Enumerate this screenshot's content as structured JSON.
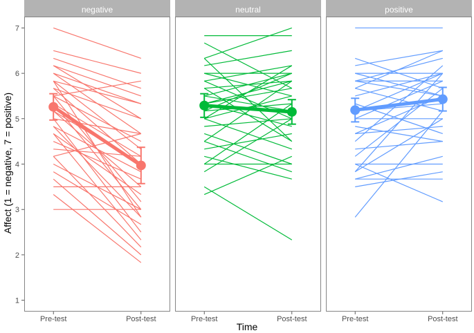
{
  "chart_data": {
    "type": "line",
    "xlabel": "Time",
    "ylabel": "Affect (1 = negative, 7 = positive)",
    "x_categories": [
      "Pre-test",
      "Post-test"
    ],
    "ylim": [
      0.75,
      7.25
    ],
    "y_ticks": [
      "1",
      "2",
      "3",
      "4",
      "5",
      "6",
      "7"
    ],
    "grid": false,
    "panels": [
      {
        "name": "negative",
        "color": "#F8766D",
        "mean": {
          "pre": 5.26,
          "post": 3.97,
          "pre_ci": [
            4.97,
            5.55
          ],
          "post_ci": [
            3.57,
            4.37
          ]
        },
        "individuals": [
          [
            7.0,
            6.33
          ],
          [
            6.5,
            6.0
          ],
          [
            6.33,
            5.67
          ],
          [
            6.17,
            5.5
          ],
          [
            6.17,
            5.0
          ],
          [
            6.0,
            5.33
          ],
          [
            6.0,
            4.67
          ],
          [
            5.83,
            5.33
          ],
          [
            5.83,
            4.33
          ],
          [
            5.67,
            5.0
          ],
          [
            5.67,
            4.0
          ],
          [
            5.5,
            5.83
          ],
          [
            5.5,
            4.5
          ],
          [
            5.33,
            4.17
          ],
          [
            5.33,
            3.0
          ],
          [
            5.17,
            4.0
          ],
          [
            5.17,
            3.5
          ],
          [
            5.0,
            4.67
          ],
          [
            5.0,
            2.5
          ],
          [
            4.83,
            3.83
          ],
          [
            4.83,
            2.83
          ],
          [
            4.67,
            3.33
          ],
          [
            4.67,
            2.33
          ],
          [
            4.5,
            3.67
          ],
          [
            4.33,
            4.17
          ],
          [
            4.17,
            2.17
          ],
          [
            4.0,
            3.0
          ],
          [
            3.83,
            2.67
          ],
          [
            3.67,
            2.0
          ],
          [
            3.5,
            3.5
          ],
          [
            3.33,
            1.83
          ],
          [
            3.0,
            3.0
          ],
          [
            4.17,
            4.67
          ],
          [
            5.5,
            3.17
          ],
          [
            5.83,
            2.83
          ]
        ]
      },
      {
        "name": "neutral",
        "color": "#00BA38",
        "mean": {
          "pre": 5.29,
          "post": 5.15,
          "pre_ci": [
            5.03,
            5.55
          ],
          "post_ci": [
            4.88,
            5.42
          ]
        },
        "individuals": [
          [
            6.83,
            6.83
          ],
          [
            6.67,
            5.67
          ],
          [
            6.33,
            7.0
          ],
          [
            6.17,
            6.5
          ],
          [
            6.0,
            6.0
          ],
          [
            6.0,
            5.5
          ],
          [
            5.83,
            6.17
          ],
          [
            5.83,
            5.0
          ],
          [
            5.67,
            4.5
          ],
          [
            5.67,
            5.83
          ],
          [
            5.5,
            6.0
          ],
          [
            5.5,
            5.17
          ],
          [
            5.33,
            5.67
          ],
          [
            5.33,
            4.83
          ],
          [
            5.17,
            6.0
          ],
          [
            5.17,
            5.33
          ],
          [
            5.0,
            5.5
          ],
          [
            5.0,
            4.33
          ],
          [
            4.83,
            5.0
          ],
          [
            4.67,
            4.0
          ],
          [
            4.5,
            5.83
          ],
          [
            4.33,
            4.67
          ],
          [
            4.0,
            4.0
          ],
          [
            4.0,
            5.33
          ],
          [
            3.83,
            5.0
          ],
          [
            3.5,
            2.33
          ],
          [
            3.33,
            4.17
          ],
          [
            4.17,
            3.67
          ],
          [
            6.33,
            4.5
          ],
          [
            5.0,
            6.17
          ],
          [
            4.5,
            3.83
          ],
          [
            5.33,
            5.83
          ]
        ]
      },
      {
        "name": "positive",
        "color": "#619CFF",
        "mean": {
          "pre": 5.19,
          "post": 5.43,
          "pre_ci": [
            4.93,
            5.45
          ],
          "post_ci": [
            5.17,
            5.69
          ]
        },
        "individuals": [
          [
            7.0,
            7.0
          ],
          [
            6.33,
            5.67
          ],
          [
            6.17,
            6.5
          ],
          [
            6.0,
            6.0
          ],
          [
            6.0,
            5.5
          ],
          [
            5.83,
            6.33
          ],
          [
            5.83,
            5.83
          ],
          [
            5.67,
            5.17
          ],
          [
            5.67,
            6.5
          ],
          [
            5.5,
            6.0
          ],
          [
            5.33,
            4.67
          ],
          [
            5.17,
            5.33
          ],
          [
            5.0,
            5.83
          ],
          [
            5.0,
            5.0
          ],
          [
            4.83,
            4.5
          ],
          [
            4.67,
            5.5
          ],
          [
            4.5,
            6.17
          ],
          [
            4.33,
            4.5
          ],
          [
            4.17,
            5.67
          ],
          [
            4.0,
            4.0
          ],
          [
            3.83,
            6.0
          ],
          [
            3.83,
            5.0
          ],
          [
            3.67,
            4.17
          ],
          [
            3.5,
            3.83
          ],
          [
            2.83,
            5.17
          ],
          [
            4.0,
            3.17
          ],
          [
            5.83,
            5.5
          ],
          [
            4.67,
            4.83
          ],
          [
            3.67,
            3.67
          ],
          [
            5.17,
            6.0
          ]
        ]
      }
    ]
  }
}
